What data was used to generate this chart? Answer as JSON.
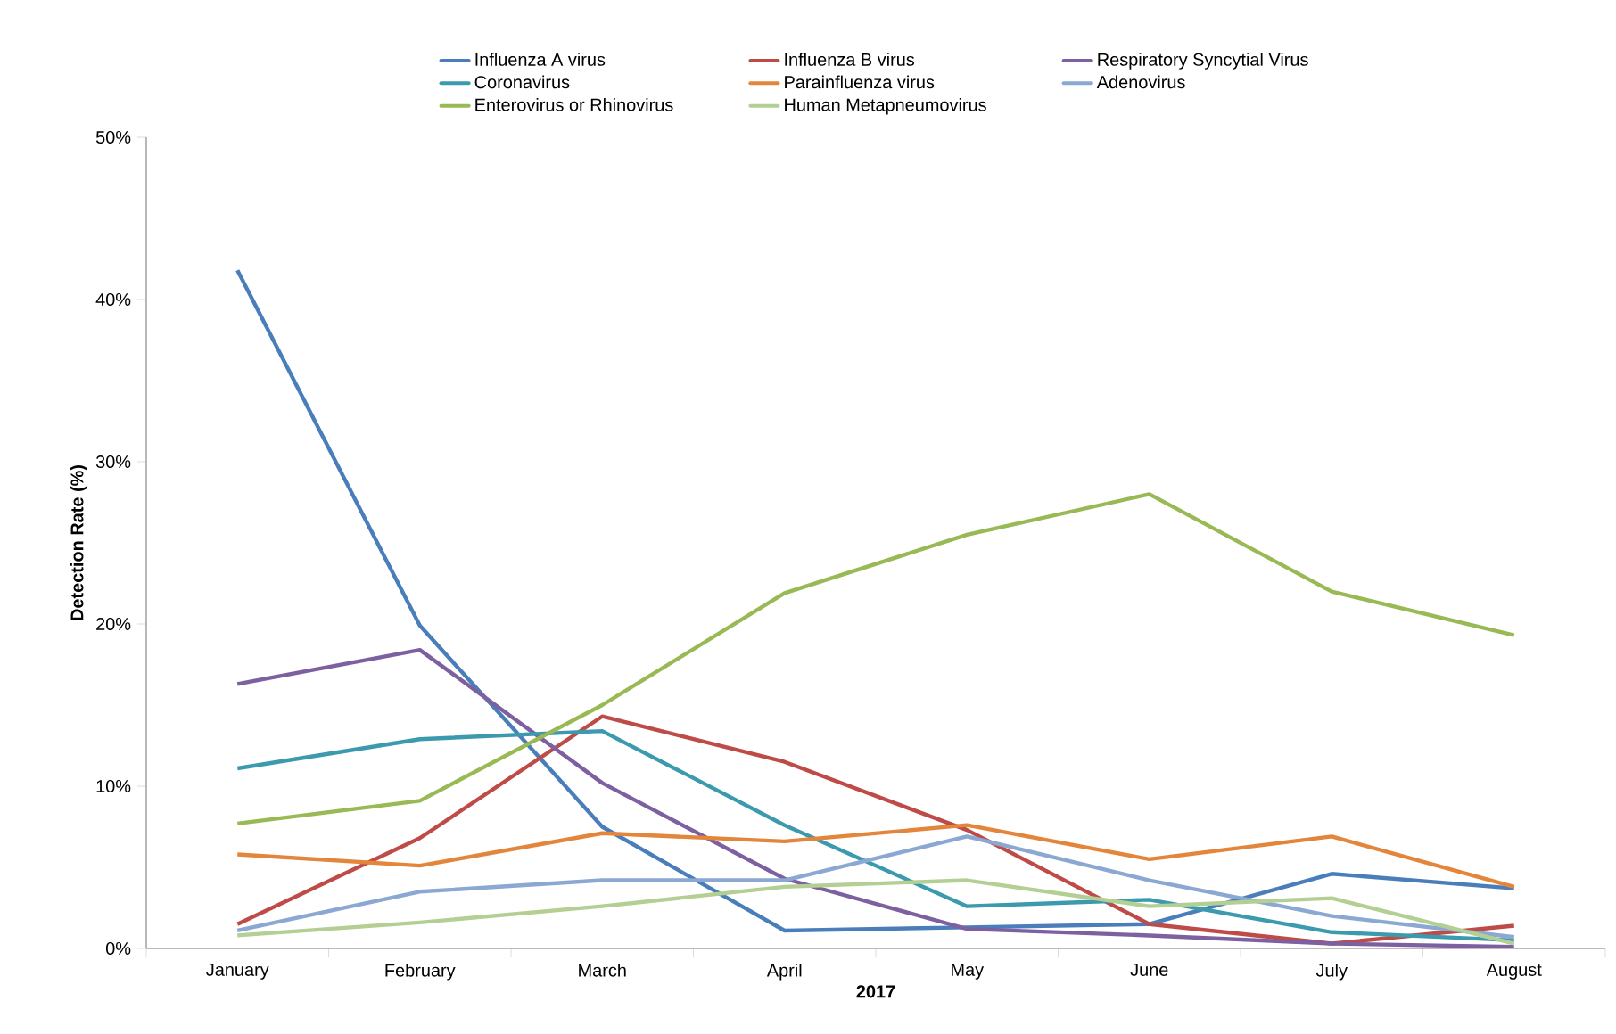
{
  "chart_data": {
    "type": "line",
    "xlabel": "2017",
    "ylabel": "Detection Rate (%)",
    "categories": [
      "January",
      "February",
      "March",
      "April",
      "May",
      "June",
      "July",
      "August"
    ],
    "ylim": [
      0,
      50
    ],
    "yticks": [
      {
        "value": 0,
        "label": "0%"
      },
      {
        "value": 10,
        "label": "10%"
      },
      {
        "value": 20,
        "label": "20%"
      },
      {
        "value": 30,
        "label": "30%"
      },
      {
        "value": 40,
        "label": "40%"
      },
      {
        "value": 50,
        "label": "50%"
      }
    ],
    "legend": "top",
    "marker": "none",
    "line_style": "solid",
    "series": [
      {
        "name": "Influenza A virus",
        "color": "#4a7ebb",
        "values": [
          41.8,
          19.9,
          7.5,
          1.1,
          1.3,
          1.5,
          4.6,
          3.7
        ]
      },
      {
        "name": "Influenza B virus",
        "color": "#be4b48",
        "values": [
          1.5,
          6.8,
          14.3,
          11.5,
          7.3,
          1.5,
          0.3,
          1.4
        ]
      },
      {
        "name": "Respiratory Syncytial Virus",
        "color": "#7d60a0",
        "values": [
          16.3,
          18.4,
          10.2,
          4.3,
          1.2,
          0.8,
          0.3,
          0.1
        ]
      },
      {
        "name": "Coronavirus",
        "color": "#3b9aad",
        "values": [
          11.1,
          12.9,
          13.4,
          7.6,
          2.6,
          3.0,
          1.0,
          0.5
        ]
      },
      {
        "name": "Parainfluenza virus",
        "color": "#e3853a",
        "values": [
          5.8,
          5.1,
          7.1,
          6.6,
          7.6,
          5.5,
          6.9,
          3.8
        ]
      },
      {
        "name": "Adenovirus",
        "color": "#8aa8d2",
        "values": [
          1.1,
          3.5,
          4.2,
          4.2,
          6.9,
          4.2,
          2.0,
          0.7
        ]
      },
      {
        "name": "Enterovirus or Rhinovirus",
        "color": "#98b954",
        "values": [
          7.7,
          9.1,
          15.0,
          21.9,
          25.5,
          28.0,
          22.0,
          19.3
        ]
      },
      {
        "name": "Human Metapneumovirus",
        "color": "#b3cf93",
        "values": [
          0.8,
          1.6,
          2.6,
          3.8,
          4.2,
          2.6,
          3.1,
          0.3
        ]
      }
    ]
  }
}
